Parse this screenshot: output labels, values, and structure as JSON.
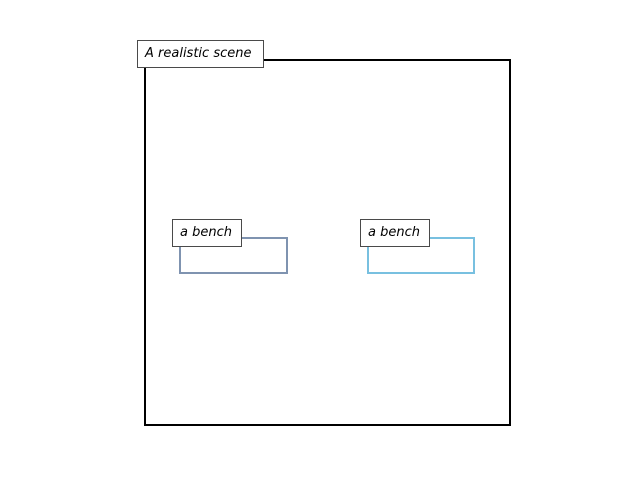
{
  "scene": {
    "label": "A realistic scene",
    "border_color": "#000000"
  },
  "objects": [
    {
      "label": "a bench",
      "border_color": "#7f93b0"
    },
    {
      "label": "a bench",
      "border_color": "#78c0e0"
    }
  ]
}
